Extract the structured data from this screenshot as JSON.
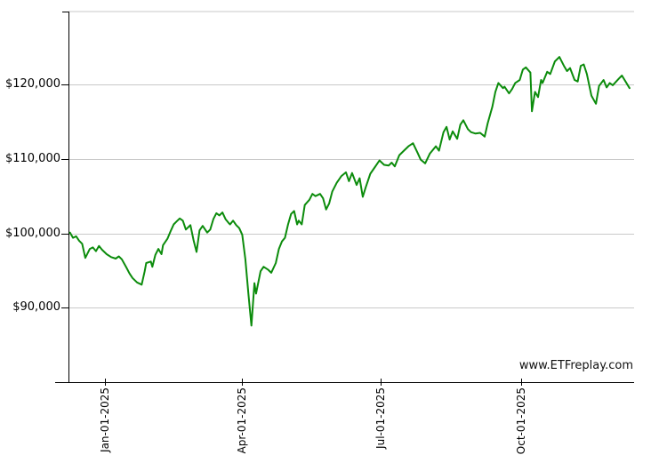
{
  "page": {
    "background": "#ffffff"
  },
  "chart_data": {
    "type": "line",
    "title": "",
    "watermark": "www.ETFreplay.com",
    "grid": true,
    "legend_position": "none",
    "line_color": "#0c8c0c",
    "grid_color": "#c9c9c9",
    "axis_color": "#000000",
    "label_color": "#000000",
    "x_axis_note": "days relative to Jan-01-2025",
    "x_domain_days": [
      -24,
      347
    ],
    "y_domain": [
      80000,
      129800
    ],
    "y_ticks": [
      {
        "value": 120000,
        "label": "$120,000"
      },
      {
        "value": 110000,
        "label": "$110,000"
      },
      {
        "value": 100000,
        "label": "$100,000"
      },
      {
        "value": 90000,
        "label": "$90,000"
      }
    ],
    "x_ticks": [
      {
        "day": 0,
        "label": "Jan-01-2025"
      },
      {
        "day": 90,
        "label": "Apr-01-2025"
      },
      {
        "day": 181,
        "label": "Jul-01-2025"
      },
      {
        "day": 273,
        "label": "Oct-01-2025"
      }
    ],
    "series": [
      {
        "name": "portfolio-growth",
        "color": "#0c8c0c",
        "points": [
          [
            -23,
            100100
          ],
          [
            -21,
            99400
          ],
          [
            -19,
            99600
          ],
          [
            -17,
            99000
          ],
          [
            -15,
            98600
          ],
          [
            -13,
            96700
          ],
          [
            -10,
            97900
          ],
          [
            -8,
            98100
          ],
          [
            -6,
            97600
          ],
          [
            -4,
            98300
          ],
          [
            -2,
            97800
          ],
          [
            1,
            97200
          ],
          [
            4,
            96800
          ],
          [
            7,
            96600
          ],
          [
            9,
            96900
          ],
          [
            11,
            96500
          ],
          [
            14,
            95400
          ],
          [
            16,
            94600
          ],
          [
            18,
            94000
          ],
          [
            21,
            93400
          ],
          [
            24,
            93100
          ],
          [
            26,
            94900
          ],
          [
            27,
            96000
          ],
          [
            30,
            96200
          ],
          [
            31,
            95500
          ],
          [
            33,
            97100
          ],
          [
            35,
            97900
          ],
          [
            37,
            97200
          ],
          [
            38,
            98400
          ],
          [
            41,
            99300
          ],
          [
            43,
            100300
          ],
          [
            45,
            101200
          ],
          [
            47,
            101600
          ],
          [
            49,
            102000
          ],
          [
            51,
            101700
          ],
          [
            53,
            100500
          ],
          [
            56,
            101100
          ],
          [
            58,
            99100
          ],
          [
            60,
            97500
          ],
          [
            62,
            100400
          ],
          [
            64,
            101000
          ],
          [
            67,
            100100
          ],
          [
            69,
            100500
          ],
          [
            71,
            101900
          ],
          [
            73,
            102700
          ],
          [
            75,
            102400
          ],
          [
            77,
            102800
          ],
          [
            79,
            101900
          ],
          [
            81,
            101400
          ],
          [
            82,
            101200
          ],
          [
            84,
            101700
          ],
          [
            86,
            101100
          ],
          [
            88,
            100700
          ],
          [
            90,
            99800
          ],
          [
            92,
            96500
          ],
          [
            94,
            91900
          ],
          [
            96,
            87600
          ],
          [
            98,
            93300
          ],
          [
            99,
            91900
          ],
          [
            102,
            94900
          ],
          [
            104,
            95500
          ],
          [
            107,
            95100
          ],
          [
            109,
            94700
          ],
          [
            112,
            96000
          ],
          [
            114,
            97900
          ],
          [
            116,
            98900
          ],
          [
            118,
            99400
          ],
          [
            120,
            101200
          ],
          [
            122,
            102600
          ],
          [
            124,
            103000
          ],
          [
            126,
            101200
          ],
          [
            127,
            101700
          ],
          [
            129,
            101200
          ],
          [
            131,
            103800
          ],
          [
            134,
            104500
          ],
          [
            136,
            105300
          ],
          [
            138,
            105000
          ],
          [
            141,
            105300
          ],
          [
            143,
            104700
          ],
          [
            145,
            103200
          ],
          [
            147,
            104000
          ],
          [
            149,
            105600
          ],
          [
            152,
            106800
          ],
          [
            155,
            107700
          ],
          [
            158,
            108200
          ],
          [
            160,
            107000
          ],
          [
            162,
            108100
          ],
          [
            165,
            106500
          ],
          [
            167,
            107400
          ],
          [
            169,
            104900
          ],
          [
            171,
            106200
          ],
          [
            174,
            108000
          ],
          [
            177,
            108900
          ],
          [
            180,
            109800
          ],
          [
            183,
            109200
          ],
          [
            186,
            109100
          ],
          [
            188,
            109500
          ],
          [
            190,
            109000
          ],
          [
            193,
            110500
          ],
          [
            196,
            111100
          ],
          [
            199,
            111700
          ],
          [
            202,
            112100
          ],
          [
            205,
            110800
          ],
          [
            207,
            109900
          ],
          [
            210,
            109400
          ],
          [
            213,
            110700
          ],
          [
            215,
            111200
          ],
          [
            217,
            111700
          ],
          [
            219,
            111100
          ],
          [
            222,
            113600
          ],
          [
            224,
            114300
          ],
          [
            226,
            112600
          ],
          [
            228,
            113700
          ],
          [
            231,
            112700
          ],
          [
            233,
            114600
          ],
          [
            235,
            115200
          ],
          [
            238,
            114000
          ],
          [
            240,
            113600
          ],
          [
            243,
            113400
          ],
          [
            246,
            113500
          ],
          [
            249,
            113000
          ],
          [
            251,
            114800
          ],
          [
            254,
            117000
          ],
          [
            256,
            119000
          ],
          [
            258,
            120200
          ],
          [
            261,
            119500
          ],
          [
            262,
            119700
          ],
          [
            265,
            118800
          ],
          [
            267,
            119400
          ],
          [
            269,
            120200
          ],
          [
            272,
            120600
          ],
          [
            274,
            122000
          ],
          [
            276,
            122300
          ],
          [
            279,
            121600
          ],
          [
            280,
            116400
          ],
          [
            282,
            119000
          ],
          [
            284,
            118300
          ],
          [
            286,
            120600
          ],
          [
            287,
            120200
          ],
          [
            290,
            121700
          ],
          [
            292,
            121400
          ],
          [
            295,
            123100
          ],
          [
            298,
            123700
          ],
          [
            301,
            122500
          ],
          [
            303,
            121800
          ],
          [
            305,
            122200
          ],
          [
            308,
            120600
          ],
          [
            310,
            120400
          ],
          [
            312,
            122500
          ],
          [
            314,
            122700
          ],
          [
            316,
            121400
          ],
          [
            319,
            118500
          ],
          [
            322,
            117400
          ],
          [
            324,
            119800
          ],
          [
            327,
            120600
          ],
          [
            329,
            119600
          ],
          [
            331,
            120200
          ],
          [
            333,
            119900
          ],
          [
            337,
            120800
          ],
          [
            339,
            121200
          ],
          [
            344,
            119500
          ]
        ]
      }
    ]
  }
}
